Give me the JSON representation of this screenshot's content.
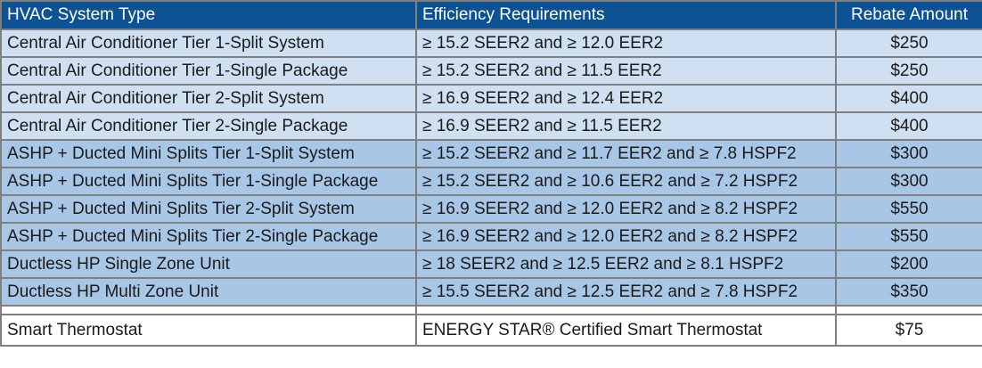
{
  "header": {
    "type": "HVAC System Type",
    "efficiency": "Efficiency Requirements",
    "rebate": "Rebate Amount"
  },
  "rows": [
    {
      "type": "Central Air Conditioner Tier 1-Split System",
      "efficiency": "≥ 15.2 SEER2 and ≥ 12.0 EER2",
      "rebate": "$250"
    },
    {
      "type": "Central Air Conditioner Tier 1-Single Package",
      "efficiency": "≥ 15.2 SEER2 and ≥ 11.5 EER2",
      "rebate": "$250"
    },
    {
      "type": "Central Air Conditioner Tier 2-Split System",
      "efficiency": "≥ 16.9 SEER2 and ≥ 12.4 EER2",
      "rebate": "$400"
    },
    {
      "type": "Central Air Conditioner Tier 2-Single Package",
      "efficiency": "≥ 16.9 SEER2 and ≥ 11.5 EER2",
      "rebate": "$400"
    },
    {
      "type": "ASHP + Ducted Mini Splits Tier 1-Split System",
      "efficiency": "≥ 15.2 SEER2 and ≥ 11.7 EER2 and ≥ 7.8 HSPF2",
      "rebate": "$300"
    },
    {
      "type": "ASHP + Ducted Mini Splits Tier 1-Single Package",
      "efficiency": "≥ 15.2 SEER2 and ≥ 10.6 EER2 and ≥ 7.2 HSPF2",
      "rebate": "$300"
    },
    {
      "type": "ASHP + Ducted Mini Splits Tier 2-Split System",
      "efficiency": "≥ 16.9 SEER2 and ≥ 12.0 EER2 and ≥ 8.2 HSPF2",
      "rebate": "$550"
    },
    {
      "type": "ASHP + Ducted Mini Splits Tier 2-Single Package",
      "efficiency": "≥ 16.9 SEER2 and ≥ 12.0 EER2 and ≥ 8.2 HSPF2",
      "rebate": "$550"
    },
    {
      "type": "Ductless HP Single Zone Unit",
      "efficiency": "≥ 18 SEER2 and ≥ 12.5 EER2 and ≥ 8.1 HSPF2",
      "rebate": "$200"
    },
    {
      "type": "Ductless HP Multi Zone Unit",
      "efficiency": "≥ 15.5 SEER2 and ≥ 12.5 EER2 and ≥ 7.8 HSPF2",
      "rebate": "$350"
    }
  ],
  "thermostat": {
    "type": "Smart Thermostat",
    "efficiency": "ENERGY STAR® Certified Smart Thermostat",
    "rebate": "$75"
  },
  "colors": {
    "header_bg": "#0d5294",
    "row_light": "#cfe0f3",
    "row_mid": "#a8c7e6",
    "border": "#7f7f7f"
  }
}
